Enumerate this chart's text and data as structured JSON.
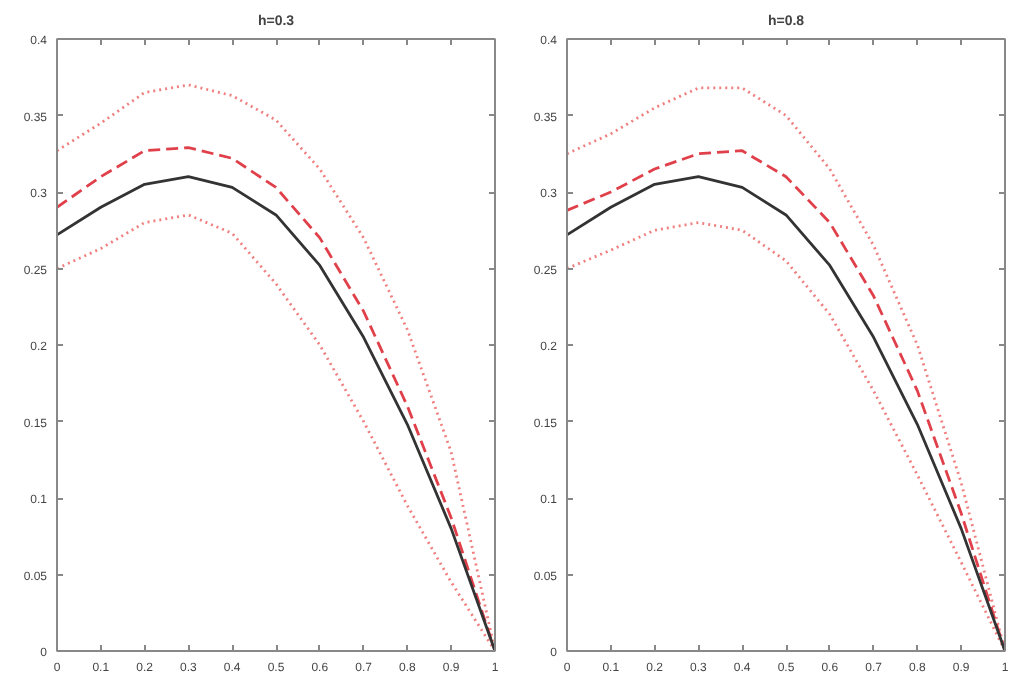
{
  "chart_data": [
    {
      "type": "line",
      "title": "h=0.3",
      "x": [
        0,
        0.1,
        0.2,
        0.3,
        0.4,
        0.5,
        0.6,
        0.7,
        0.8,
        0.9,
        1
      ],
      "xlim": [
        0,
        1
      ],
      "ylim": [
        0,
        0.4
      ],
      "xticks": [
        0,
        0.1,
        0.2,
        0.3,
        0.4,
        0.5,
        0.6,
        0.7,
        0.8,
        0.9,
        1
      ],
      "yticks": [
        0,
        0.05,
        0.1,
        0.15,
        0.2,
        0.25,
        0.3,
        0.35,
        0.4
      ],
      "grid": false,
      "marker": "none",
      "series": [
        {
          "color": "#f08080",
          "line_style": "dotted",
          "values": [
            0.327,
            0.345,
            0.365,
            0.37,
            0.363,
            0.347,
            0.315,
            0.27,
            0.21,
            0.13,
            0
          ]
        },
        {
          "color": "#f08080",
          "line_style": "dotted",
          "values": [
            0.25,
            0.263,
            0.28,
            0.285,
            0.273,
            0.24,
            0.2,
            0.15,
            0.095,
            0.045,
            0
          ]
        },
        {
          "color": "#e0404a",
          "line_style": "dashed",
          "values": [
            0.29,
            0.31,
            0.327,
            0.329,
            0.322,
            0.303,
            0.27,
            0.222,
            0.16,
            0.087,
            0
          ]
        },
        {
          "color": "#333333",
          "line_style": "solid",
          "values": [
            0.272,
            0.29,
            0.305,
            0.31,
            0.303,
            0.285,
            0.252,
            0.205,
            0.148,
            0.08,
            0
          ]
        }
      ]
    },
    {
      "type": "line",
      "title": "h=0.8",
      "x": [
        0,
        0.1,
        0.2,
        0.3,
        0.4,
        0.5,
        0.6,
        0.7,
        0.8,
        0.9,
        1
      ],
      "xlim": [
        0,
        1
      ],
      "ylim": [
        0,
        0.4
      ],
      "xticks": [
        0,
        0.1,
        0.2,
        0.3,
        0.4,
        0.5,
        0.6,
        0.7,
        0.8,
        0.9,
        1
      ],
      "yticks": [
        0,
        0.05,
        0.1,
        0.15,
        0.2,
        0.25,
        0.3,
        0.35,
        0.4
      ],
      "grid": false,
      "marker": "none",
      "series": [
        {
          "color": "#f08080",
          "line_style": "dotted",
          "values": [
            0.325,
            0.338,
            0.355,
            0.368,
            0.368,
            0.35,
            0.315,
            0.265,
            0.2,
            0.11,
            0
          ]
        },
        {
          "color": "#f08080",
          "line_style": "dotted",
          "values": [
            0.25,
            0.262,
            0.275,
            0.28,
            0.275,
            0.255,
            0.22,
            0.17,
            0.115,
            0.058,
            0
          ]
        },
        {
          "color": "#e0404a",
          "line_style": "dashed",
          "values": [
            0.288,
            0.3,
            0.315,
            0.325,
            0.327,
            0.31,
            0.28,
            0.232,
            0.17,
            0.09,
            0
          ]
        },
        {
          "color": "#333333",
          "line_style": "solid",
          "values": [
            0.272,
            0.29,
            0.305,
            0.31,
            0.303,
            0.285,
            0.252,
            0.205,
            0.148,
            0.08,
            0
          ]
        }
      ]
    }
  ]
}
